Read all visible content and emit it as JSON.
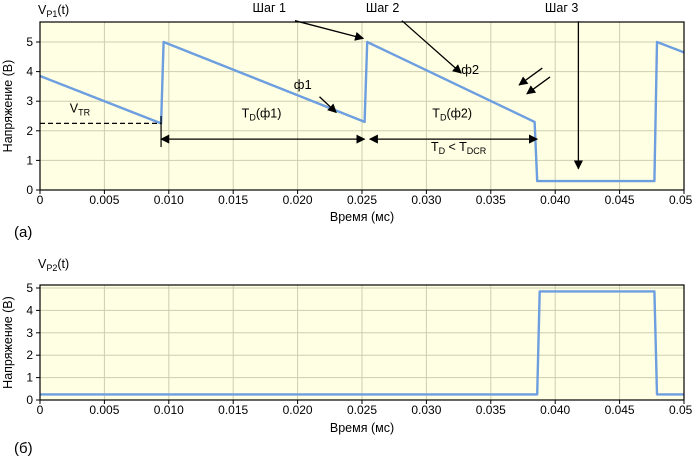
{
  "colors": {
    "plot_bg": "#ffffe3",
    "grid": "#cdcdb0",
    "frame": "#000000",
    "line": "#6d9ee0",
    "text": "#000000"
  },
  "labels": {
    "a": "(а)",
    "b": "(б)"
  },
  "chart_data": [
    {
      "type": "line",
      "title_segments": [
        [
          "V",
          ""
        ],
        [
          "P1",
          "sub"
        ],
        [
          "(t)",
          ""
        ]
      ],
      "xlabel": "Время (мс)",
      "ylabel": "Напряжение (В)",
      "xlim": [
        0,
        0.05
      ],
      "ylim": [
        0,
        5
      ],
      "xticks": [
        0,
        0.005,
        0.01,
        0.015,
        0.02,
        0.025,
        0.03,
        0.035,
        0.04,
        0.045,
        0.05
      ],
      "xtick_labels": [
        "0",
        "0.005",
        "0.010",
        "0.015",
        "0.020",
        "0.025",
        "0.030",
        "0.035",
        "0.040",
        "0.045",
        "0.050"
      ],
      "yticks": [
        0,
        1,
        2,
        3,
        4,
        5
      ],
      "grid": true,
      "series": [
        {
          "name": "VP1",
          "points": [
            [
              0,
              3.85
            ],
            [
              0.0094,
              2.25
            ],
            [
              0.0096,
              5
            ],
            [
              0.0252,
              2.3
            ],
            [
              0.0254,
              5
            ],
            [
              0.0384,
              2.3
            ],
            [
              0.0386,
              0.3
            ],
            [
              0.0477,
              0.3
            ],
            [
              0.0479,
              5
            ],
            [
              0.05,
              4.65
            ]
          ]
        }
      ],
      "annotations": [
        {
          "kind": "text",
          "x": 0.0178,
          "y": 6.02,
          "segments": [
            [
              "Шаг 1",
              ""
            ]
          ]
        },
        {
          "kind": "arrow",
          "from": [
            0.0198,
            5.72
          ],
          "to": [
            0.0251,
            5.12
          ]
        },
        {
          "kind": "text",
          "x": 0.0266,
          "y": 6.02,
          "segments": [
            [
              "Шаг 2",
              ""
            ]
          ]
        },
        {
          "kind": "arrow",
          "from": [
            0.0281,
            5.72
          ],
          "to": [
            0.0327,
            3.95
          ]
        },
        {
          "kind": "text",
          "x": 0.0405,
          "y": 6.02,
          "segments": [
            [
              "Шаг 3",
              ""
            ]
          ]
        },
        {
          "kind": "arrow",
          "from": [
            0.0418,
            5.7
          ],
          "to": [
            0.0418,
            0.72
          ]
        },
        {
          "kind": "text",
          "x": 0.0204,
          "y": 3.42,
          "segments": [
            [
              "ф1",
              ""
            ]
          ],
          "size": 13
        },
        {
          "kind": "arrow",
          "from": [
            0.0217,
            3.15
          ],
          "to": [
            0.023,
            2.62
          ]
        },
        {
          "kind": "text",
          "x": 0.0334,
          "y": 3.92,
          "segments": [
            [
              "ф2",
              ""
            ]
          ],
          "size": 13
        },
        {
          "kind": "arrow",
          "from": [
            0.039,
            4.12
          ],
          "to": [
            0.0372,
            3.55
          ]
        },
        {
          "kind": "arrow",
          "from": [
            0.0396,
            3.82
          ],
          "to": [
            0.0378,
            3.25
          ]
        },
        {
          "kind": "text",
          "x": 0.0031,
          "y": 2.62,
          "segments": [
            [
              "V",
              ""
            ],
            [
              "TR",
              "sub"
            ]
          ]
        },
        {
          "kind": "dash",
          "from": [
            0,
            2.25
          ],
          "to": [
            0.0094,
            2.25
          ]
        },
        {
          "kind": "line",
          "from": [
            0.0094,
            2.5
          ],
          "to": [
            0.0094,
            1.45
          ]
        },
        {
          "kind": "text",
          "x": 0.0172,
          "y": 2.45,
          "segments": [
            [
              "T",
              ""
            ],
            [
              "D",
              "sub"
            ],
            [
              "(ф1)",
              ""
            ]
          ]
        },
        {
          "kind": "darrow",
          "from": [
            0.0094,
            1.72
          ],
          "to": [
            0.0252,
            1.72
          ]
        },
        {
          "kind": "text",
          "x": 0.032,
          "y": 2.45,
          "segments": [
            [
              "T",
              ""
            ],
            [
              "D",
              "sub"
            ],
            [
              "(ф2)",
              ""
            ]
          ]
        },
        {
          "kind": "darrow",
          "from": [
            0.0256,
            1.72
          ],
          "to": [
            0.0386,
            1.72
          ]
        },
        {
          "kind": "text",
          "x": 0.0325,
          "y": 1.32,
          "segments": [
            [
              "T",
              ""
            ],
            [
              "D",
              "sub"
            ],
            [
              " < T",
              ""
            ],
            [
              "DCR",
              "sub"
            ]
          ]
        }
      ]
    },
    {
      "type": "line",
      "title_segments": [
        [
          "V",
          ""
        ],
        [
          "P2",
          "sub"
        ],
        [
          "(t)",
          ""
        ]
      ],
      "xlabel": "Время (мс)",
      "ylabel": "Напряжение (В)",
      "xlim": [
        0,
        0.05
      ],
      "ylim": [
        0,
        5
      ],
      "xticks": [
        0,
        0.005,
        0.01,
        0.015,
        0.02,
        0.025,
        0.03,
        0.035,
        0.04,
        0.045,
        0.05
      ],
      "xtick_labels": [
        "0",
        "0.005",
        "0.010",
        "0.015",
        "0.020",
        "0.025",
        "0.030",
        "0.035",
        "0.040",
        "0.045",
        "0.050"
      ],
      "yticks": [
        0,
        1,
        2,
        3,
        4,
        5
      ],
      "grid": true,
      "series": [
        {
          "name": "VP2",
          "points": [
            [
              0,
              0.25
            ],
            [
              0.0386,
              0.25
            ],
            [
              0.0388,
              4.85
            ],
            [
              0.0477,
              4.85
            ],
            [
              0.0479,
              0.25
            ],
            [
              0.05,
              0.25
            ]
          ]
        }
      ],
      "annotations": []
    }
  ]
}
